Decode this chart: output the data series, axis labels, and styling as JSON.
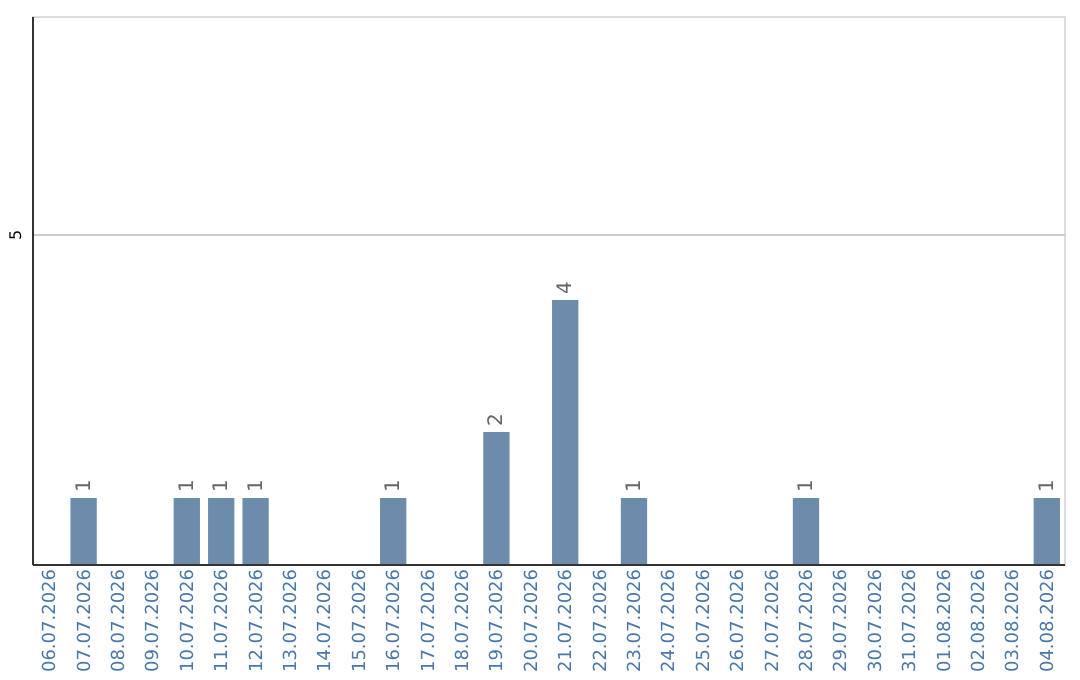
{
  "chart_data": {
    "type": "bar",
    "categories": [
      "06.07.2026",
      "07.07.2026",
      "08.07.2026",
      "09.07.2026",
      "10.07.2026",
      "11.07.2026",
      "12.07.2026",
      "13.07.2026",
      "14.07.2026",
      "15.07.2026",
      "16.07.2026",
      "17.07.2026",
      "18.07.2026",
      "19.07.2026",
      "20.07.2026",
      "21.07.2026",
      "22.07.2026",
      "23.07.2026",
      "24.07.2026",
      "25.07.2026",
      "26.07.2026",
      "27.07.2026",
      "28.07.2026",
      "29.07.2026",
      "30.07.2026",
      "31.07.2026",
      "01.08.2026",
      "02.08.2026",
      "03.08.2026",
      "04.08.2026"
    ],
    "values": [
      0,
      1,
      0,
      0,
      1,
      1,
      1,
      0,
      0,
      0,
      1,
      0,
      0,
      2,
      0,
      4,
      0,
      1,
      0,
      0,
      0,
      0,
      1,
      0,
      0,
      0,
      0,
      0,
      0,
      1
    ],
    "value_labels": [
      null,
      "1",
      null,
      null,
      "1",
      "1",
      "1",
      null,
      null,
      null,
      "1",
      null,
      null,
      "2",
      null,
      "4",
      null,
      "1",
      null,
      null,
      null,
      null,
      "1",
      null,
      null,
      null,
      null,
      null,
      null,
      "1"
    ],
    "color": "#6d8cab",
    "ylim": [
      0,
      8.3
    ],
    "yticks": [
      5
    ],
    "grid": "y"
  }
}
